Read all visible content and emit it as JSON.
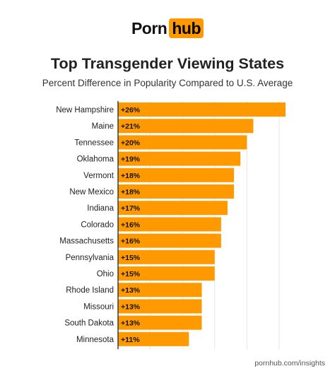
{
  "logo": {
    "left": "Porn",
    "right": "hub"
  },
  "title": "Top Transgender Viewing States",
  "subtitle": "Percent Difference in Popularity Compared to U.S. Average",
  "footer": "pornhub.com/insights",
  "colors": {
    "bar": "#ff9900",
    "grid": "#e6e6e6",
    "axis": "#222222",
    "accent": "#ff9900"
  },
  "chart_data": {
    "type": "bar",
    "orientation": "horizontal",
    "title": "Top Transgender Viewing States",
    "subtitle": "Percent Difference in Popularity Compared to U.S. Average",
    "xlim": [
      0,
      26
    ],
    "grid": true,
    "categories": [
      "New Hampshire",
      "Maine",
      "Tennessee",
      "Oklahoma",
      "Vermont",
      "New Mexico",
      "Indiana",
      "Colorado",
      "Massachusetts",
      "Pennsylvania",
      "Ohio",
      "Rhode Island",
      "Missouri",
      "South Dakota",
      "Minnesota"
    ],
    "values": [
      26,
      21,
      20,
      19,
      18,
      18,
      17,
      16,
      16,
      15,
      15,
      13,
      13,
      13,
      11
    ],
    "value_labels": [
      "+26%",
      "+21%",
      "+20%",
      "+19%",
      "+18%",
      "+18%",
      "+17%",
      "+16%",
      "+16%",
      "+15%",
      "+15%",
      "+13%",
      "+13%",
      "+13%",
      "+11%"
    ]
  }
}
